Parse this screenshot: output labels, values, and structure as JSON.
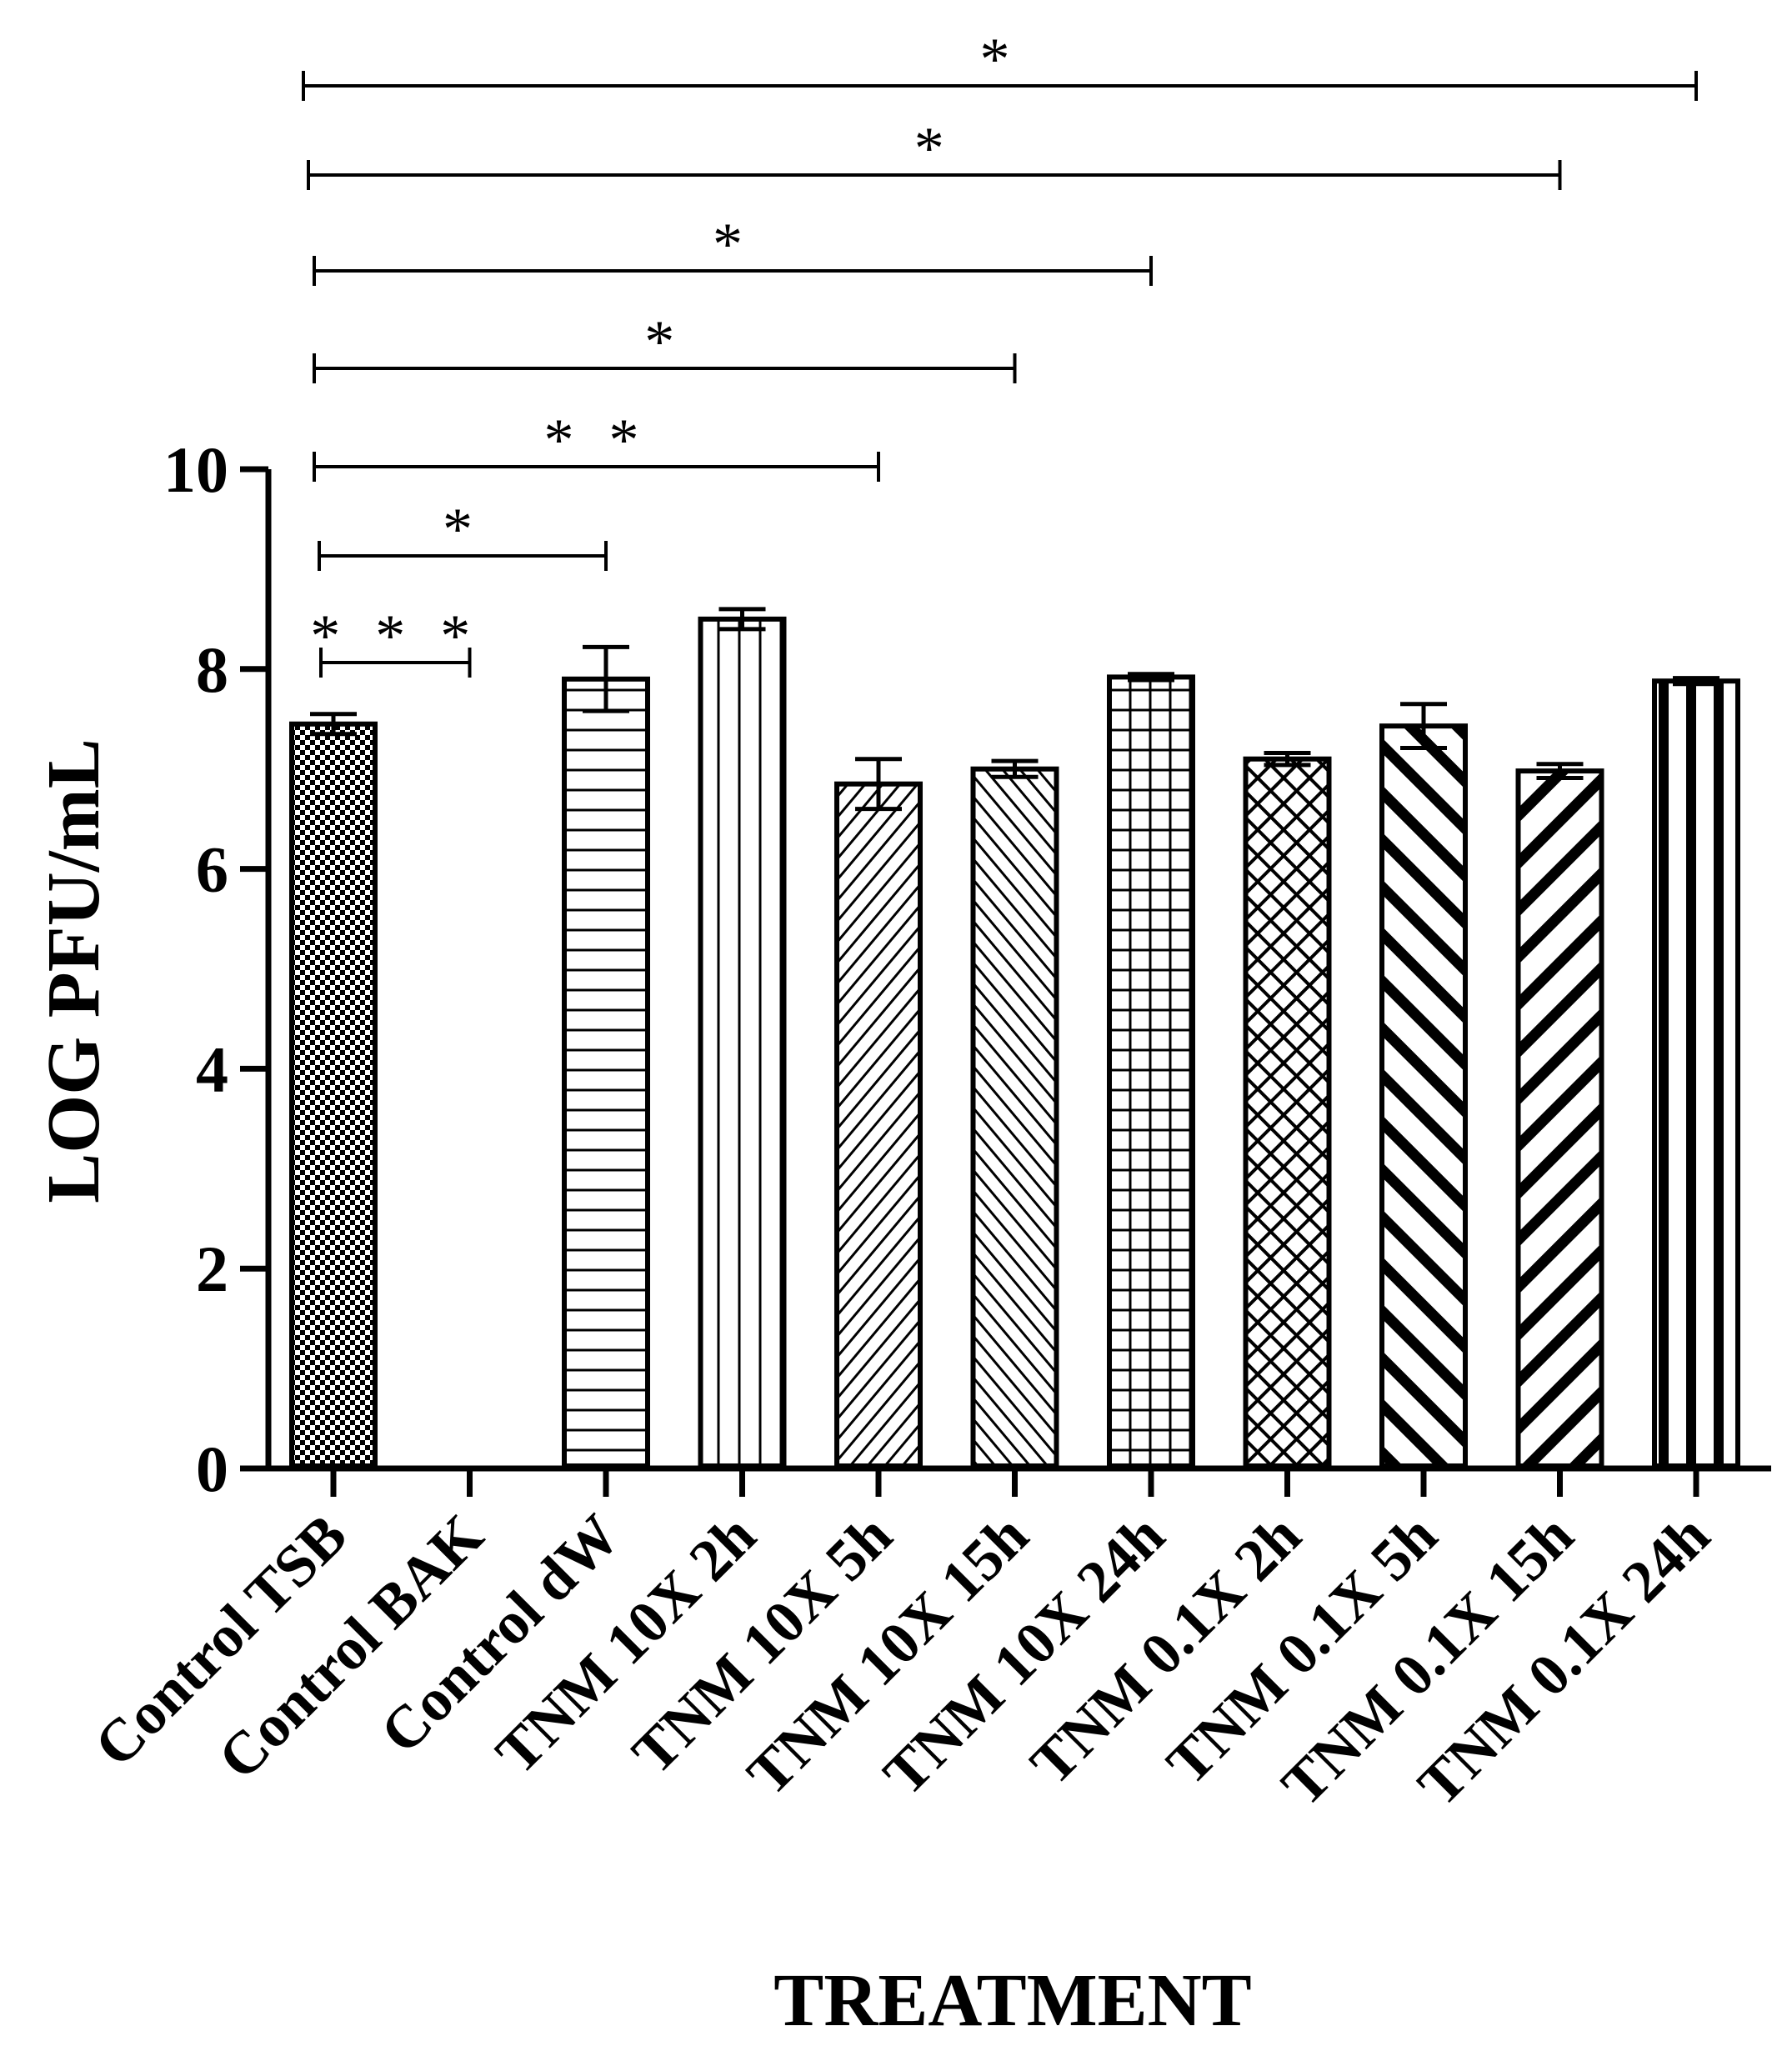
{
  "chart_data": {
    "type": "bar",
    "title": "",
    "xlabel": "TREATMENT",
    "ylabel": "LOG PFU/mL",
    "ylim": [
      0,
      10
    ],
    "yticks": [
      0,
      2,
      4,
      6,
      8,
      10
    ],
    "grid": false,
    "categories": [
      "Control TSB",
      "Control BAK",
      "Control dW",
      "TNM 10X 2h",
      "TNM 10X 5h",
      "TNM 10X 15h",
      "TNM 10X 24h",
      "TNM 0.1X 2h",
      "TNM 0.1X 5h",
      "TNM 0.1X 15h",
      "TNM 0.1X 24h"
    ],
    "values": [
      7.45,
      0,
      7.9,
      8.5,
      6.85,
      7.0,
      7.92,
      7.1,
      7.43,
      6.98,
      7.88
    ],
    "errors": [
      0.1,
      0,
      0.32,
      0.1,
      0.25,
      0.08,
      0.03,
      0.06,
      0.22,
      0.07,
      0.03
    ],
    "patterns": [
      "checker",
      "none",
      "horizontal-lines",
      "vertical-lines",
      "diagonal-up",
      "diagonal-down",
      "grid",
      "crosshatch",
      "thick-diagonal-down",
      "thick-diagonal-up",
      "thick-vertical"
    ],
    "significance": [
      {
        "from": 0,
        "to": 1,
        "label": "***"
      },
      {
        "from": 0,
        "to": 2,
        "label": "*"
      },
      {
        "from": 0,
        "to": 4,
        "label": "**"
      },
      {
        "from": 0,
        "to": 5,
        "label": "*"
      },
      {
        "from": 0,
        "to": 6,
        "label": "*"
      },
      {
        "from": 0,
        "to": 9,
        "label": "*"
      },
      {
        "from": 0,
        "to": 10,
        "label": "*"
      }
    ],
    "colors": {
      "bar_stroke": "#000000",
      "bar_fill": "#ffffff",
      "axis": "#000000"
    }
  }
}
